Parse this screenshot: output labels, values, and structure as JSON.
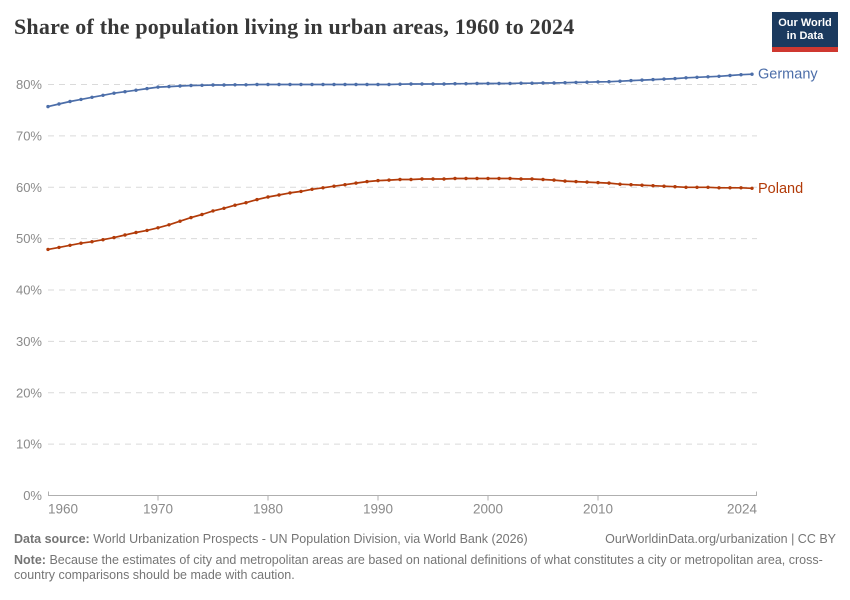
{
  "header": {
    "title": "Share of the population living in urban areas, 1960 to 2024",
    "logo": {
      "line1": "Our World",
      "line2": "in Data",
      "bg_color": "#1b3a5f",
      "bar_color": "#cf3830"
    }
  },
  "chart_data": {
    "type": "line",
    "title": "Share of the population living in urban areas, 1960 to 2024",
    "xlabel": "",
    "ylabel": "",
    "ytick_suffix": "%",
    "ylim": [
      0,
      85
    ],
    "yticks": [
      0,
      10,
      20,
      30,
      40,
      50,
      60,
      70,
      80
    ],
    "xticks": [
      1960,
      1970,
      1980,
      1990,
      2000,
      2010,
      2024
    ],
    "grid": "horizontal-dashed",
    "legend_position": "line-end-labels",
    "colors": {
      "grid": "#dadada",
      "axis": "#afafaf",
      "tick_text": "#8a8a8a"
    },
    "x": [
      1960,
      1961,
      1962,
      1963,
      1964,
      1965,
      1966,
      1967,
      1968,
      1969,
      1970,
      1971,
      1972,
      1973,
      1974,
      1975,
      1976,
      1977,
      1978,
      1979,
      1980,
      1981,
      1982,
      1983,
      1984,
      1985,
      1986,
      1987,
      1988,
      1989,
      1990,
      1991,
      1992,
      1993,
      1994,
      1995,
      1996,
      1997,
      1998,
      1999,
      2000,
      2001,
      2002,
      2003,
      2004,
      2005,
      2006,
      2007,
      2008,
      2009,
      2010,
      2011,
      2012,
      2013,
      2014,
      2015,
      2016,
      2017,
      2018,
      2019,
      2020,
      2021,
      2022,
      2023,
      2024
    ],
    "series": [
      {
        "name": "Germany",
        "color": "#4C6EA9",
        "values": [
          75.7,
          76.2,
          76.7,
          77.1,
          77.5,
          77.9,
          78.3,
          78.6,
          78.9,
          79.2,
          79.5,
          79.6,
          79.7,
          79.8,
          79.85,
          79.9,
          79.9,
          79.95,
          79.95,
          80.0,
          80.0,
          80.0,
          80.0,
          80.0,
          80.0,
          80.0,
          80.0,
          80.0,
          80.0,
          80.0,
          80.0,
          80.0,
          80.05,
          80.1,
          80.1,
          80.1,
          80.1,
          80.15,
          80.15,
          80.2,
          80.2,
          80.2,
          80.2,
          80.25,
          80.25,
          80.3,
          80.3,
          80.35,
          80.4,
          80.45,
          80.5,
          80.55,
          80.65,
          80.75,
          80.85,
          80.95,
          81.05,
          81.15,
          81.3,
          81.4,
          81.5,
          81.6,
          81.75,
          81.9,
          82.0
        ]
      },
      {
        "name": "Poland",
        "color": "#B23B09",
        "values": [
          47.9,
          48.3,
          48.7,
          49.1,
          49.4,
          49.8,
          50.2,
          50.7,
          51.2,
          51.6,
          52.1,
          52.7,
          53.4,
          54.1,
          54.7,
          55.4,
          55.9,
          56.5,
          57.0,
          57.6,
          58.1,
          58.5,
          58.9,
          59.2,
          59.6,
          59.9,
          60.2,
          60.5,
          60.8,
          61.1,
          61.3,
          61.4,
          61.5,
          61.5,
          61.6,
          61.6,
          61.6,
          61.7,
          61.7,
          61.7,
          61.7,
          61.7,
          61.7,
          61.6,
          61.6,
          61.5,
          61.4,
          61.2,
          61.1,
          61.0,
          60.9,
          60.8,
          60.6,
          60.5,
          60.4,
          60.3,
          60.2,
          60.1,
          60.0,
          60.0,
          60.0,
          59.9,
          59.9,
          59.9,
          59.8
        ]
      }
    ]
  },
  "footer": {
    "datasource_label": "Data source:",
    "datasource_text": "World Urbanization Prospects - UN Population Division, via World Bank (2026)",
    "attribution": "OurWorldinData.org/urbanization | CC BY",
    "note_label": "Note:",
    "note_text": "Because the estimates of city and metropolitan areas are based on national definitions of what constitutes a city or metropolitan area, cross-country comparisons should be made with caution."
  }
}
